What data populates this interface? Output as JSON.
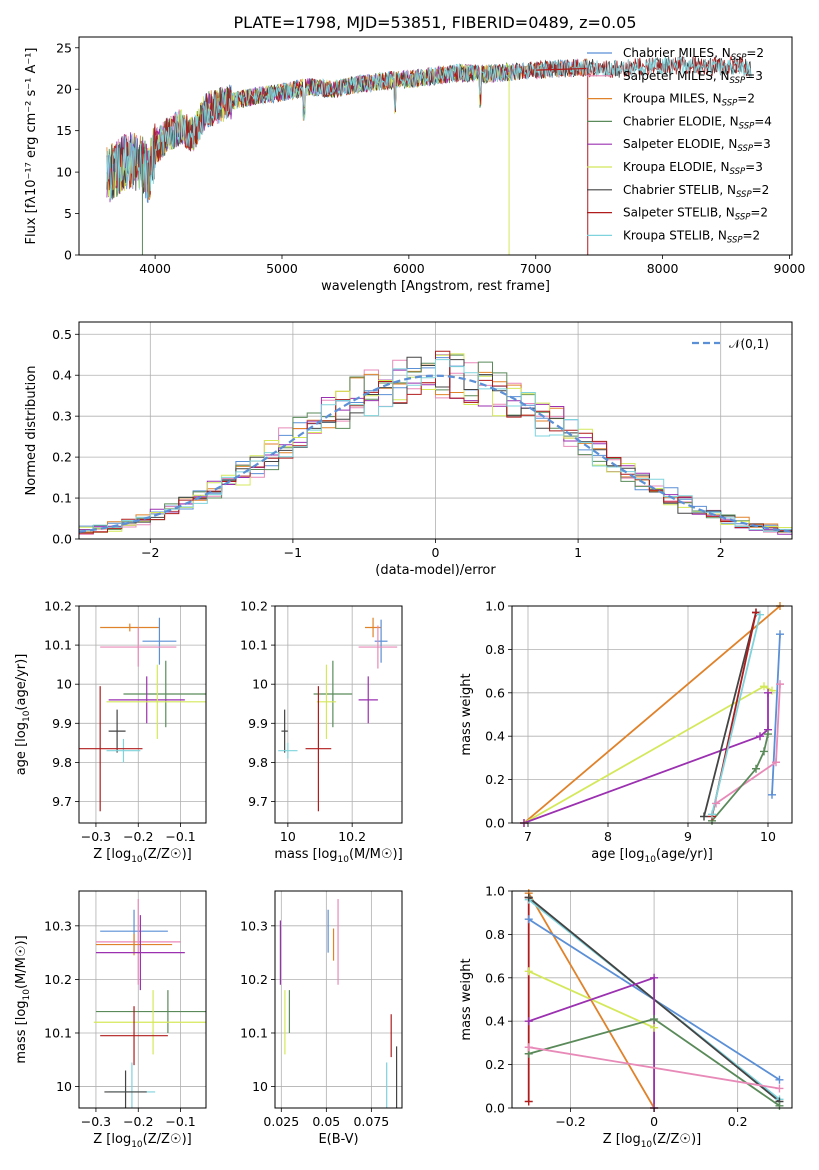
{
  "figure": {
    "title": "PLATE=1798, MJD=53851, FIBERID=0489, z=0.05"
  },
  "colors": {
    "Chabrier MILES": "#5b8fd6",
    "Salpeter MILES": "#e88ab8",
    "Kroupa MILES": "#e0822a",
    "Chabrier ELODIE": "#5a8a5a",
    "Salpeter ELODIE": "#9b30b0",
    "Kroupa ELODIE": "#d4e85a",
    "Chabrier STELIB": "#444444",
    "Salpeter STELIB": "#b01c1c",
    "Kroupa STELIB": "#7ed3dc"
  },
  "chart_data": [
    {
      "id": "spectrum",
      "type": "line",
      "title": "PLATE=1798, MJD=53851, FIBERID=0489, z=0.05",
      "xlabel": "wavelength [Angstrom, rest frame]",
      "ylabel": "Flux [fλ10⁻¹⁷ erg cm⁻² s⁻¹ A⁻¹]",
      "xlim": [
        3400,
        9020
      ],
      "ylim": [
        0,
        26.3
      ],
      "xticks": [
        4000,
        5000,
        6000,
        7000,
        8000,
        9000
      ],
      "yticks": [
        0,
        5,
        10,
        15,
        20,
        25
      ],
      "grid": false,
      "legend_position": "right",
      "legend": [
        {
          "name": "Chabrier MILES",
          "base": "Chabrier MILES, N",
          "sub": "SSP",
          "tail": "=2"
        },
        {
          "name": "Salpeter MILES",
          "base": "Salpeter MILES, N",
          "sub": "SSP",
          "tail": "=3"
        },
        {
          "name": "Kroupa MILES",
          "base": "Kroupa MILES, N",
          "sub": "SSP",
          "tail": "=2"
        },
        {
          "name": "Chabrier ELODIE",
          "base": "Chabrier ELODIE, N",
          "sub": "SSP",
          "tail": "=4"
        },
        {
          "name": "Salpeter ELODIE",
          "base": "Salpeter ELODIE, N",
          "sub": "SSP",
          "tail": "=3"
        },
        {
          "name": "Kroupa ELODIE",
          "base": "Kroupa ELODIE, N",
          "sub": "SSP",
          "tail": "=3"
        },
        {
          "name": "Chabrier STELIB",
          "base": "Chabrier STELIB, N",
          "sub": "SSP",
          "tail": "=2"
        },
        {
          "name": "Salpeter STELIB",
          "base": "Salpeter STELIB, N",
          "sub": "SSP",
          "tail": "=2"
        },
        {
          "name": "Kroupa STELIB",
          "base": "Kroupa STELIB, N",
          "sub": "SSP",
          "tail": "=2"
        }
      ],
      "continuum": {
        "x": [
          3620,
          3700,
          3800,
          3900,
          3950,
          4000,
          4100,
          4200,
          4300,
          4400,
          4500,
          4600,
          4800,
          5000,
          5200,
          5400,
          5600,
          5800,
          6000,
          6200,
          6400,
          6600,
          6800,
          7000,
          7200,
          7400,
          7600,
          7800,
          8000,
          8200,
          8400,
          8600,
          8700
        ],
        "y": [
          9.5,
          10.5,
          11.5,
          11.0,
          9.5,
          13.0,
          14.5,
          15.5,
          14.5,
          17.5,
          18.0,
          18.5,
          19.2,
          19.6,
          20.3,
          20.0,
          20.6,
          21.0,
          21.2,
          21.6,
          22.0,
          21.8,
          22.1,
          22.3,
          22.5,
          22.6,
          22.4,
          22.7,
          22.8,
          22.9,
          22.7,
          22.9,
          22.4
        ]
      },
      "range": {
        "default": [
          3620,
          8700
        ],
        "Chabrier MILES": [
          3620,
          7410
        ],
        "Salpeter MILES": [
          3620,
          7410
        ],
        "Kroupa MILES": [
          3620,
          7410
        ],
        "Chabrier ELODIE": [
          3620,
          6800
        ],
        "Salpeter ELODIE": [
          3620,
          6800
        ],
        "Kroupa ELODIE": [
          3620,
          6800
        ]
      },
      "drops": [
        {
          "series": "Chabrier ELODIE",
          "x": 3900,
          "to": 0
        },
        {
          "series": "Kroupa ELODIE",
          "x": 6790,
          "to": 0
        },
        {
          "series": "Salpeter STELIB",
          "x": 7410,
          "to": 0
        }
      ],
      "line_segment": {
        "series": "Salpeter STELIB",
        "x": [
          7000,
          7400
        ],
        "y": [
          22.3,
          22.5
        ]
      }
    },
    {
      "id": "residuals",
      "type": "line",
      "xlabel": "(data-model)/error",
      "ylabel": "Normed distribution",
      "xlim": [
        -2.5,
        2.5
      ],
      "ylim": [
        0,
        0.53
      ],
      "xticks": [
        -2,
        -1,
        0,
        1,
        2
      ],
      "yticks": [
        0.0,
        0.1,
        0.2,
        0.3,
        0.4,
        0.5
      ],
      "grid": true,
      "legend_position": "top-right",
      "reference": {
        "name": "𝒩(0,1)",
        "style": "dashed",
        "color": "#5b8fd6",
        "mean": 0,
        "sigma": 1
      },
      "histogram": {
        "bin_width": 0.1,
        "x_start": -2.5,
        "x_end": 2.5
      }
    },
    {
      "id": "age-vs-Z",
      "type": "scatter",
      "xlabel_base": "Z [log",
      "xlabel_tail": "(Z/Z☉)]",
      "ylabel_base": "age  [log",
      "ylabel_tail": "(age/yr)]",
      "xlim": [
        -0.34,
        -0.04
      ],
      "ylim": [
        9.645,
        10.2
      ],
      "xticks": [
        -0.3,
        -0.2,
        -0.1
      ],
      "yticks": [
        9.7,
        9.8,
        9.9,
        10.0,
        10.1,
        10.2
      ],
      "grid": true,
      "points": [
        {
          "series": "Kroupa MILES",
          "x": -0.22,
          "xerr": 0.07,
          "y": 10.145,
          "yerr": 0.01
        },
        {
          "series": "Chabrier MILES",
          "x": -0.15,
          "xerr": 0.04,
          "y": 10.11,
          "yerr": 0.06
        },
        {
          "series": "Salpeter MILES",
          "x": -0.2,
          "xerr": 0.09,
          "y": 10.095,
          "yerr": 0.05
        },
        {
          "series": "Chabrier ELODIE",
          "x": -0.135,
          "xerr": 0.1,
          "y": 9.975,
          "yerr": 0.085
        },
        {
          "series": "Salpeter ELODIE",
          "x": -0.18,
          "xerr": 0.09,
          "y": 9.96,
          "yerr": 0.06
        },
        {
          "series": "Kroupa ELODIE",
          "x": -0.155,
          "xerr": 0.12,
          "y": 9.955,
          "yerr": 0.095
        },
        {
          "series": "Chabrier STELIB",
          "x": -0.25,
          "xerr": 0.02,
          "y": 9.88,
          "yerr": 0.055
        },
        {
          "series": "Kroupa STELIB",
          "x": -0.235,
          "xerr": 0.04,
          "y": 9.83,
          "yerr": 0.03
        },
        {
          "series": "Salpeter STELIB",
          "x": -0.29,
          "xerr": 0.1,
          "y": 9.835,
          "yerr": 0.16
        }
      ]
    },
    {
      "id": "age-vs-mass",
      "type": "scatter",
      "xlabel_base": "mass [log",
      "xlabel_tail": "(M/M☉)]",
      "xlim": [
        9.96,
        10.355
      ],
      "ylim": [
        9.645,
        10.2
      ],
      "xticks": [
        10.0,
        10.2
      ],
      "yticks": [
        9.7,
        9.8,
        9.9,
        10.0,
        10.1,
        10.2
      ],
      "grid": true,
      "points": [
        {
          "series": "Kroupa MILES",
          "x": 10.265,
          "xerr": 0.025,
          "y": 10.145,
          "yerr": 0.025
        },
        {
          "series": "Chabrier MILES",
          "x": 10.29,
          "xerr": 0.02,
          "y": 10.11,
          "yerr": 0.055
        },
        {
          "series": "Salpeter MILES",
          "x": 10.28,
          "xerr": 0.06,
          "y": 10.095,
          "yerr": 0.055
        },
        {
          "series": "Chabrier ELODIE",
          "x": 10.14,
          "xerr": 0.06,
          "y": 9.975,
          "yerr": 0.085
        },
        {
          "series": "Salpeter ELODIE",
          "x": 10.25,
          "xerr": 0.03,
          "y": 9.96,
          "yerr": 0.06
        },
        {
          "series": "Kroupa ELODIE",
          "x": 10.12,
          "xerr": 0.03,
          "y": 9.955,
          "yerr": 0.095
        },
        {
          "series": "Chabrier STELIB",
          "x": 9.99,
          "xerr": 0.01,
          "y": 9.88,
          "yerr": 0.055
        },
        {
          "series": "Kroupa STELIB",
          "x": 10.0,
          "xerr": 0.03,
          "y": 9.83,
          "yerr": 0.02
        },
        {
          "series": "Salpeter STELIB",
          "x": 10.095,
          "xerr": 0.04,
          "y": 9.835,
          "yerr": 0.16
        }
      ]
    },
    {
      "id": "weight-vs-age",
      "type": "line",
      "xlabel_base": "age  [log",
      "xlabel_tail": "(age/yr)]",
      "ylabel": "mass weight",
      "xlim": [
        6.8,
        10.3
      ],
      "ylim": [
        0,
        1.0
      ],
      "xticks": [
        7,
        8,
        9,
        10
      ],
      "yticks": [
        0.0,
        0.2,
        0.4,
        0.6,
        0.8,
        1.0
      ],
      "grid": true,
      "series": [
        {
          "name": "Kroupa MILES",
          "x": [
            6.95,
            10.15
          ],
          "y": [
            0.0,
            1.0
          ]
        },
        {
          "name": "Kroupa ELODIE",
          "x": [
            6.95,
            9.95,
            10.05
          ],
          "y": [
            0.0,
            0.63,
            0.61
          ]
        },
        {
          "name": "Salpeter ELODIE",
          "x": [
            6.95,
            9.9,
            10.0,
            10.0
          ],
          "y": [
            0.0,
            0.4,
            0.43,
            0.6
          ]
        },
        {
          "name": "Chabrier MILES",
          "x": [
            10.05,
            10.15
          ],
          "y": [
            0.13,
            0.87
          ]
        },
        {
          "name": "Salpeter MILES",
          "x": [
            9.35,
            10.1,
            10.15
          ],
          "y": [
            0.09,
            0.28,
            0.64
          ]
        },
        {
          "name": "Chabrier ELODIE",
          "x": [
            9.3,
            9.85,
            9.95,
            10.0
          ],
          "y": [
            0.01,
            0.25,
            0.33,
            0.41
          ]
        },
        {
          "name": "Chabrier STELIB",
          "x": [
            9.2,
            9.85
          ],
          "y": [
            0.03,
            0.97
          ]
        },
        {
          "name": "Salpeter STELIB",
          "x": [
            9.3,
            9.85
          ],
          "y": [
            0.03,
            0.97
          ]
        },
        {
          "name": "Kroupa STELIB",
          "x": [
            9.3,
            9.9
          ],
          "y": [
            0.04,
            0.96
          ]
        }
      ]
    },
    {
      "id": "mass-vs-Z",
      "type": "scatter",
      "xlabel_base": "Z [log",
      "xlabel_tail": "(Z/Z☉)]",
      "ylabel_base": "mass [log",
      "ylabel_tail": "(M/M☉)]",
      "xlim": [
        -0.34,
        -0.04
      ],
      "ylim": [
        9.96,
        10.365
      ],
      "xticks": [
        -0.3,
        -0.2,
        -0.1
      ],
      "yticks": [
        10.0,
        10.1,
        10.2,
        10.3
      ],
      "grid": true,
      "points": [
        {
          "series": "Chabrier MILES",
          "x": -0.21,
          "xerr": 0.08,
          "y": 10.29,
          "yerr": 0.04
        },
        {
          "series": "Salpeter MILES",
          "x": -0.2,
          "xerr": 0.1,
          "y": 10.27,
          "yerr": 0.08
        },
        {
          "series": "Kroupa MILES",
          "x": -0.21,
          "xerr": 0.09,
          "y": 10.265,
          "yerr": 0.02
        },
        {
          "series": "Salpeter ELODIE",
          "x": -0.195,
          "xerr": 0.105,
          "y": 10.25,
          "yerr": 0.07
        },
        {
          "series": "Chabrier ELODIE",
          "x": -0.13,
          "xerr": 0.17,
          "y": 10.14,
          "yerr": 0.04
        },
        {
          "series": "Kroupa ELODIE",
          "x": -0.165,
          "xerr": 0.14,
          "y": 10.12,
          "yerr": 0.06
        },
        {
          "series": "Salpeter STELIB",
          "x": -0.21,
          "xerr": 0.08,
          "y": 10.095,
          "yerr": 0.055
        },
        {
          "series": "Kroupa STELIB",
          "x": -0.215,
          "xerr": 0.055,
          "y": 9.99,
          "yerr": 0.055
        },
        {
          "series": "Chabrier STELIB",
          "x": -0.23,
          "xerr": 0.05,
          "y": 9.99,
          "yerr": 0.04
        }
      ]
    },
    {
      "id": "mass-vs-EBV",
      "type": "scatter",
      "xlabel": "E(B-V)",
      "xlim": [
        0.0215,
        0.092
      ],
      "ylim": [
        9.96,
        10.365
      ],
      "xticks": [
        0.025,
        0.05,
        0.075
      ],
      "yticks": [
        10.0,
        10.1,
        10.2,
        10.3
      ],
      "grid": true,
      "points": [
        {
          "series": "Chabrier MILES",
          "x": 0.051,
          "xerr": 0,
          "y": 10.29,
          "yerr": 0.04
        },
        {
          "series": "Salpeter MILES",
          "x": 0.0565,
          "xerr": 0,
          "y": 10.27,
          "yerr": 0.08
        },
        {
          "series": "Kroupa MILES",
          "x": 0.054,
          "xerr": 0,
          "y": 10.265,
          "yerr": 0.03
        },
        {
          "series": "Salpeter ELODIE",
          "x": 0.0245,
          "xerr": 0,
          "y": 10.25,
          "yerr": 0.06
        },
        {
          "series": "Chabrier ELODIE",
          "x": 0.0295,
          "xerr": 0,
          "y": 10.14,
          "yerr": 0.04
        },
        {
          "series": "Kroupa ELODIE",
          "x": 0.027,
          "xerr": 0,
          "y": 10.12,
          "yerr": 0.06
        },
        {
          "series": "Salpeter STELIB",
          "x": 0.086,
          "xerr": 0,
          "y": 10.095,
          "yerr": 0.04
        },
        {
          "series": "Kroupa STELIB",
          "x": 0.0835,
          "xerr": 0,
          "y": 9.995,
          "yerr": 0.05
        },
        {
          "series": "Chabrier STELIB",
          "x": 0.089,
          "xerr": 0,
          "y": 10.01,
          "yerr": 0.065
        }
      ]
    },
    {
      "id": "weight-vs-Z",
      "type": "line",
      "xlabel_base": "Z [log",
      "xlabel_tail": "(Z/Z☉)]",
      "ylabel": "mass weight",
      "xlim": [
        -0.34,
        0.33
      ],
      "ylim": [
        0,
        1.0
      ],
      "xticks": [
        -0.2,
        0.0,
        0.2
      ],
      "yticks": [
        0.0,
        0.2,
        0.4,
        0.6,
        0.8,
        1.0
      ],
      "grid": true,
      "series": [
        {
          "name": "Salpeter STELIB",
          "x": [
            -0.3,
            -0.3
          ],
          "y": [
            0.03,
            0.97
          ]
        },
        {
          "name": "Kroupa MILES",
          "x": [
            -0.3,
            0.0
          ],
          "y": [
            0.99,
            0.0
          ]
        },
        {
          "name": "Chabrier MILES",
          "x": [
            -0.3,
            0.3
          ],
          "y": [
            0.87,
            0.13
          ]
        },
        {
          "name": "Kroupa STELIB",
          "x": [
            -0.3,
            0.3
          ],
          "y": [
            0.96,
            0.04
          ]
        },
        {
          "name": "Chabrier STELIB",
          "x": [
            -0.3,
            0.3
          ],
          "y": [
            0.97,
            0.03
          ]
        },
        {
          "name": "Kroupa ELODIE",
          "x": [
            -0.3,
            0.0,
            0.0
          ],
          "y": [
            0.63,
            0.37,
            0.0
          ]
        },
        {
          "name": "Salpeter ELODIE",
          "x": [
            -0.3,
            0.0,
            0.0
          ],
          "y": [
            0.4,
            0.6,
            0.0
          ]
        },
        {
          "name": "Chabrier ELODIE",
          "x": [
            -0.3,
            0.0,
            0.3
          ],
          "y": [
            0.25,
            0.41,
            0.01
          ]
        },
        {
          "name": "Salpeter MILES",
          "x": [
            -0.3,
            0.3
          ],
          "y": [
            0.28,
            0.09
          ]
        }
      ]
    }
  ]
}
